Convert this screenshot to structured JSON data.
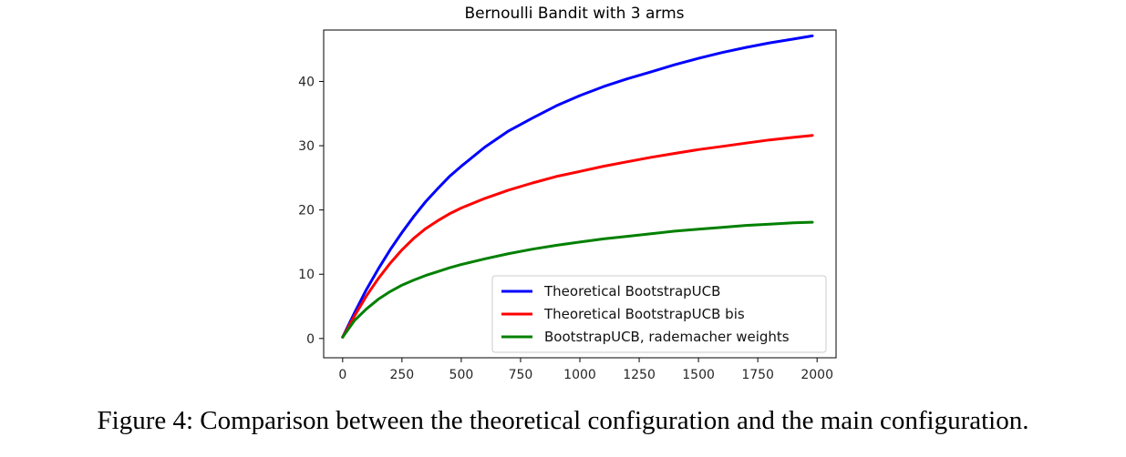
{
  "chart_data": {
    "type": "line",
    "title": "Bernoulli Bandit with 3 arms",
    "xlabel": "",
    "ylabel": "",
    "xlim": [
      -80,
      2080
    ],
    "ylim": [
      -3,
      48
    ],
    "xticks": [
      0,
      250,
      500,
      750,
      1000,
      1250,
      1500,
      1750,
      2000
    ],
    "yticks": [
      0,
      10,
      20,
      30,
      40
    ],
    "grid": false,
    "legend_position": "lower-right",
    "x": [
      0,
      50,
      100,
      150,
      200,
      250,
      300,
      350,
      400,
      450,
      500,
      600,
      700,
      800,
      900,
      1000,
      1100,
      1200,
      1300,
      1400,
      1500,
      1600,
      1700,
      1800,
      1900,
      1980
    ],
    "series": [
      {
        "name": "Theoretical BootstrapUCB",
        "color": "#0000ff",
        "values": [
          0.2,
          4.0,
          7.6,
          10.8,
          13.8,
          16.5,
          19.0,
          21.3,
          23.3,
          25.2,
          26.8,
          29.8,
          32.3,
          34.3,
          36.2,
          37.8,
          39.2,
          40.4,
          41.5,
          42.6,
          43.6,
          44.5,
          45.3,
          46.0,
          46.6,
          47.1
        ]
      },
      {
        "name": "Theoretical BootstrapUCB bis",
        "color": "#ff0000",
        "values": [
          0.2,
          3.5,
          6.6,
          9.3,
          11.7,
          13.8,
          15.6,
          17.1,
          18.3,
          19.4,
          20.3,
          21.8,
          23.1,
          24.2,
          25.2,
          26.0,
          26.8,
          27.5,
          28.2,
          28.8,
          29.4,
          29.9,
          30.4,
          30.9,
          31.3,
          31.6
        ]
      },
      {
        "name": "BootstrapUCB, rademacher weights",
        "color": "#008000",
        "values": [
          0.2,
          2.8,
          4.6,
          6.1,
          7.3,
          8.3,
          9.1,
          9.8,
          10.4,
          11.0,
          11.5,
          12.4,
          13.2,
          13.9,
          14.5,
          15.0,
          15.5,
          15.9,
          16.3,
          16.7,
          17.0,
          17.3,
          17.6,
          17.8,
          18.0,
          18.1
        ]
      }
    ]
  },
  "caption": "Figure 4: Comparison between the theoretical configuration and the main configuration."
}
